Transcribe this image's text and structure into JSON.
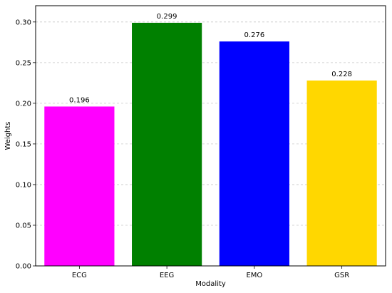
{
  "chart_data": {
    "type": "bar",
    "categories": [
      "ECG",
      "EEG",
      "EMO",
      "GSR"
    ],
    "values": [
      0.196,
      0.299,
      0.276,
      0.228
    ],
    "data_labels": [
      "0.196",
      "0.299",
      "0.276",
      "0.228"
    ],
    "colors": [
      "#ff00ff",
      "#008000",
      "#0000ff",
      "#ffd700"
    ],
    "title": "",
    "xlabel": "Modality",
    "ylabel": "Weights",
    "ylim": [
      0,
      0.32
    ],
    "yticks": [
      0.0,
      0.05,
      0.1,
      0.15,
      0.2,
      0.25,
      0.3
    ],
    "ytick_labels": [
      "0.00",
      "0.05",
      "0.10",
      "0.15",
      "0.20",
      "0.25",
      "0.30"
    ],
    "grid": "y-dashed",
    "legend": "none"
  }
}
